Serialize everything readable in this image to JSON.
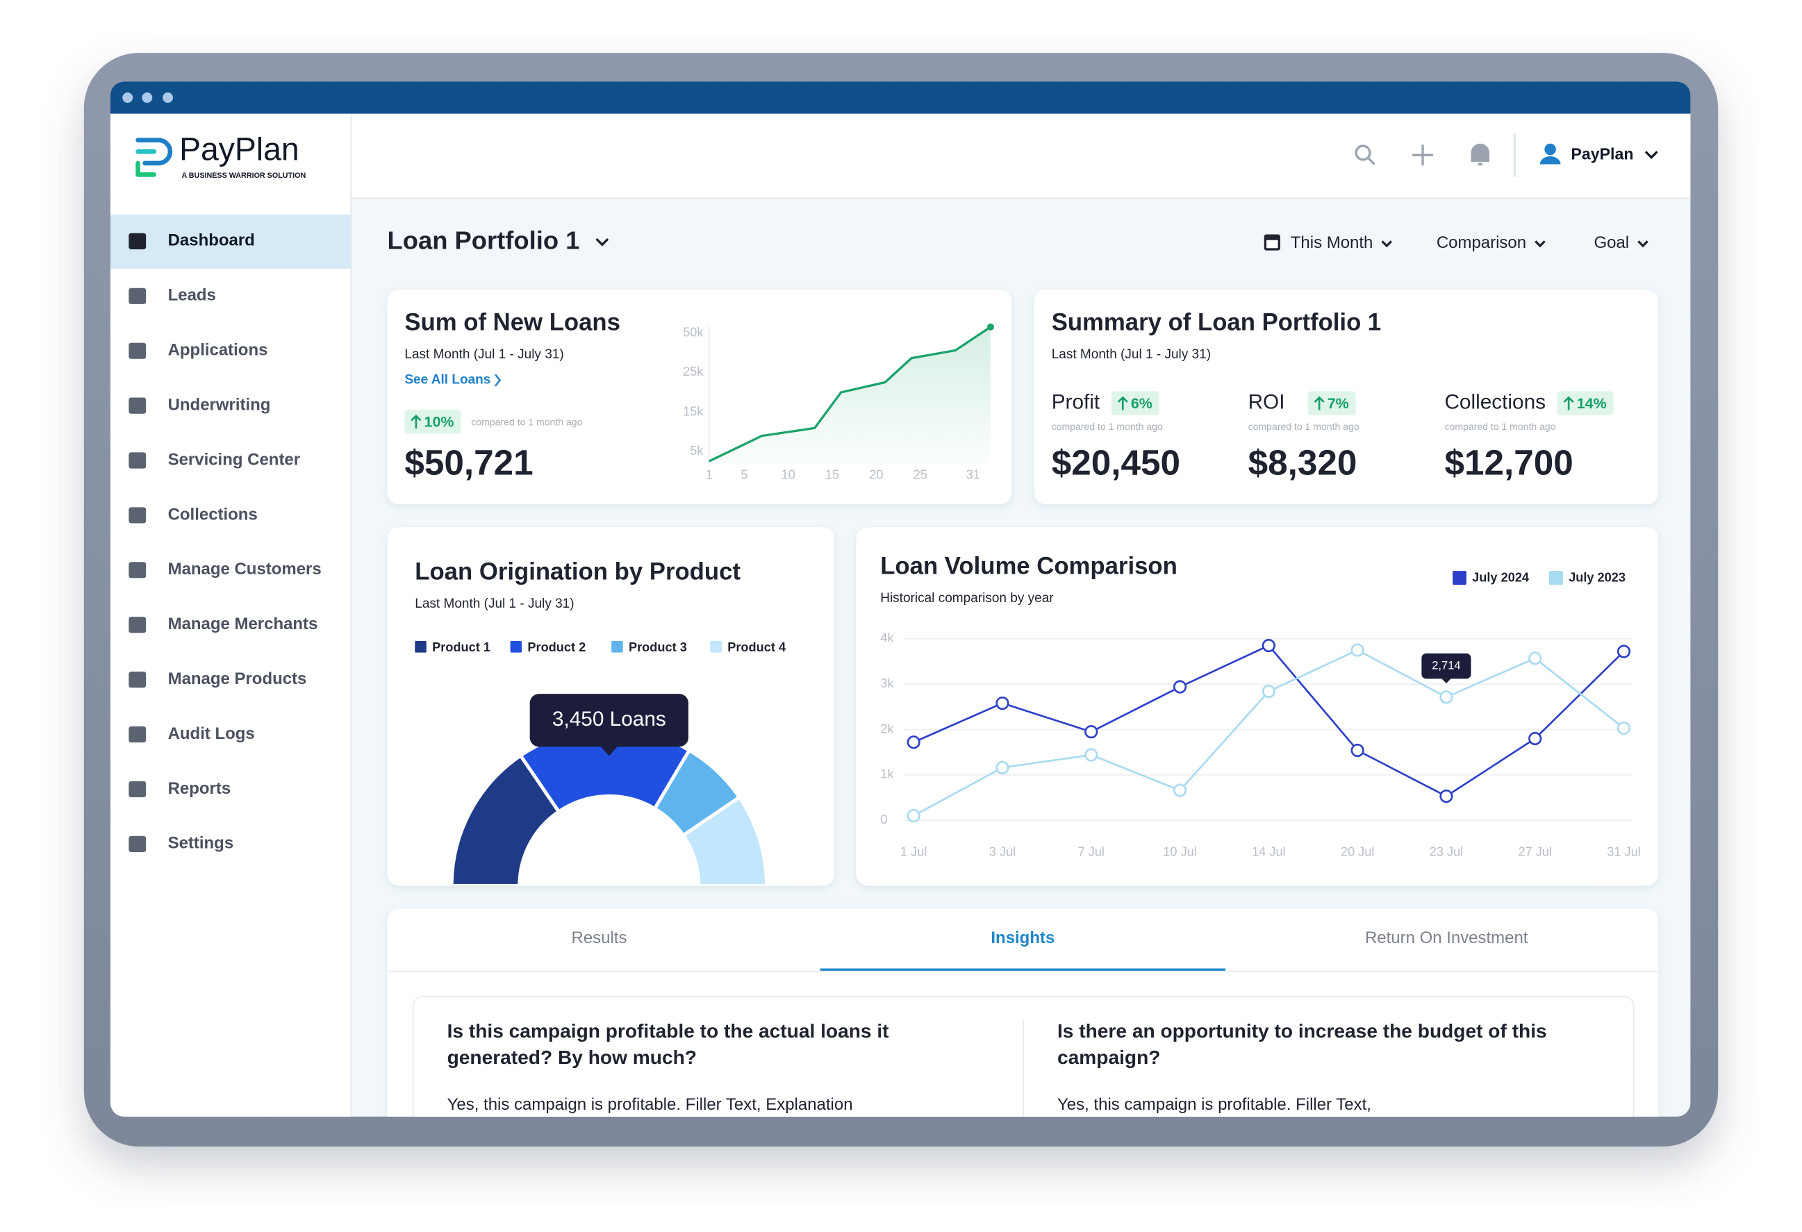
{
  "brand": {
    "name": "PayPlan",
    "tagline": "A BUSINESS WARRIOR SOLUTION"
  },
  "nav": {
    "items": [
      "Dashboard",
      "Leads",
      "Applications",
      "Underwriting",
      "Servicing Center",
      "Collections",
      "Manage Customers",
      "Manage Merchants",
      "Manage Products",
      "Audit Logs",
      "Reports",
      "Settings"
    ],
    "active": 0
  },
  "topbar": {
    "user": "PayPlan"
  },
  "header": {
    "title": "Loan Portfolio 1",
    "filters": [
      "This Month",
      "Comparison",
      "Goal"
    ]
  },
  "new_loans": {
    "title": "Sum of New Loans",
    "subtitle": "Last Month (Jul 1 - July 31)",
    "link": "See All Loans",
    "change": "10%",
    "note": "compared to 1 month ago",
    "total": "$50,721",
    "chart": {
      "type": "area",
      "x": [
        1,
        7,
        13,
        16,
        21,
        24,
        29,
        33
      ],
      "values": [
        2500,
        9000,
        11000,
        20000,
        22500,
        34000,
        39000,
        54000
      ],
      "color": "#1aa36b",
      "xlim": [
        1,
        33
      ],
      "xticks": [
        1,
        5,
        10,
        15,
        20,
        25,
        31
      ],
      "ylim": [
        2000,
        55000
      ],
      "yticks": [
        {
          "value": 5000,
          "label": "5k"
        },
        {
          "value": 15000,
          "label": "15k"
        },
        {
          "value": 25000,
          "label": "25k"
        },
        {
          "value": 50000,
          "label": "50k"
        }
      ]
    }
  },
  "summary": {
    "title": "Summary of Loan Portfolio 1",
    "subtitle": "Last Month (Jul 1 - July 31)",
    "metrics": [
      {
        "label": "Profit",
        "change": "6%",
        "note": "compared to 1 month ago",
        "value": "$20,450"
      },
      {
        "label": "ROI",
        "change": "7%",
        "note": "compared to 1 month ago",
        "value": "$8,320"
      },
      {
        "label": "Collections",
        "change": "14%",
        "note": "compared to 1 month ago",
        "value": "$12,700"
      }
    ]
  },
  "origination": {
    "title": "Loan Origination by Product",
    "subtitle": "Last Month (Jul 1 - July 31)",
    "tooltip": "3,450 Loans",
    "chart": {
      "type": "pie",
      "categories": [
        "Product 1",
        "Product 2",
        "Product 3",
        "Product 4"
      ],
      "values": [
        31,
        36,
        14,
        19
      ],
      "colors": [
        "#1f3a87",
        "#2150e0",
        "#5fb4ee",
        "#c2e6fb"
      ]
    }
  },
  "volume": {
    "title": "Loan Volume Comparison",
    "subtitle": "Historical comparison by year",
    "chart": {
      "type": "line",
      "categories": [
        "1 Jul",
        "3 Jul",
        "7 Jul",
        "10 Jul",
        "14 Jul",
        "20 Jul",
        "23 Jul",
        "27 Jul",
        "31 Jul"
      ],
      "series": [
        {
          "name": "July 2024",
          "color": "#2b3fc7",
          "values": [
            1720,
            2580,
            1950,
            2940,
            3850,
            1540,
            530,
            1800,
            3720
          ]
        },
        {
          "name": "July 2023",
          "color": "#a8daf2",
          "values": [
            100,
            1160,
            1440,
            660,
            2840,
            3750,
            2714,
            3570,
            2030
          ],
          "value_labels": [
            null,
            null,
            null,
            null,
            null,
            null,
            "2,714",
            null,
            null
          ]
        }
      ],
      "ylim": [
        0,
        4000
      ],
      "yticks": [
        0,
        {
          "value": 1000,
          "label": "1k"
        },
        {
          "value": 2000,
          "label": "2k"
        },
        {
          "value": 3000,
          "label": "3k"
        },
        {
          "value": 4000,
          "label": "4k"
        }
      ],
      "grid": true
    }
  },
  "tabs": {
    "items": [
      "Results",
      "Insights",
      "Return On Investment"
    ],
    "active": 1
  },
  "insights": [
    {
      "question": "Is this campaign profitable to the actual loans it generated? By how much?",
      "answer": "Yes, this campaign is profitable. Filler Text, Explanation"
    },
    {
      "question": "Is there an opportunity to increase the budget of this campaign?",
      "answer": "Yes, this campaign is profitable. Filler Text,"
    }
  ]
}
